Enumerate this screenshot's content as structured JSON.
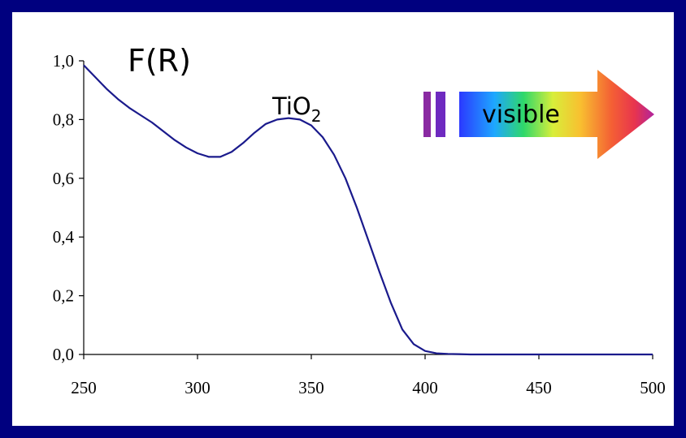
{
  "chart_data": {
    "type": "line",
    "ylabel": "F(R)",
    "xlabel": "",
    "xlim": [
      250,
      500
    ],
    "ylim": [
      0.0,
      1.0
    ],
    "x_ticks": [
      250,
      300,
      350,
      400,
      450,
      500
    ],
    "y_ticks": [
      0.0,
      0.2,
      0.4,
      0.6,
      0.8,
      1.0
    ],
    "x_tick_labels": [
      "250",
      "300",
      "350",
      "400",
      "450",
      "500"
    ],
    "y_tick_labels": [
      "0,0",
      "0,2",
      "0,4",
      "0,6",
      "0,8",
      "1,0"
    ],
    "grid": false,
    "series": [
      {
        "color": "#1a1a8c",
        "x": [
          250,
          255,
          260,
          265,
          270,
          275,
          280,
          285,
          290,
          295,
          300,
          305,
          310,
          315,
          320,
          325,
          330,
          335,
          340,
          345,
          350,
          355,
          360,
          365,
          370,
          375,
          380,
          385,
          390,
          395,
          400,
          405,
          410,
          415,
          420,
          430,
          440,
          450,
          460,
          470,
          480,
          490,
          500
        ],
        "values": [
          0.985,
          0.945,
          0.905,
          0.87,
          0.84,
          0.815,
          0.79,
          0.76,
          0.73,
          0.705,
          0.685,
          0.673,
          0.673,
          0.69,
          0.72,
          0.755,
          0.785,
          0.8,
          0.805,
          0.8,
          0.78,
          0.74,
          0.68,
          0.6,
          0.5,
          0.39,
          0.28,
          0.175,
          0.085,
          0.035,
          0.012,
          0.004,
          0.002,
          0.001,
          0.0,
          0.0,
          0.0,
          0.0,
          0.0,
          0.0,
          0.0,
          0.0,
          0.0
        ]
      }
    ],
    "annotations": {
      "ylabel_text": "F(R)",
      "label_main": "TiO",
      "label_sub": "2",
      "arrow_text": "visible"
    }
  }
}
